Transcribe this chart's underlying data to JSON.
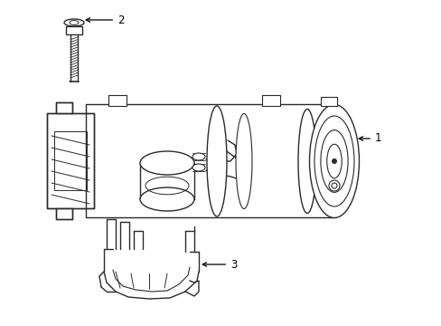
{
  "background_color": "#ffffff",
  "line_color": "#2a2a2a",
  "line_width": 1.0,
  "label_color": "#000000",
  "label_fontsize": 8.5,
  "labels": {
    "1": {
      "text": "1"
    },
    "2": {
      "text": "2"
    },
    "3": {
      "text": "3"
    }
  },
  "arrow_color": "#000000",
  "figsize": [
    4.89,
    3.6
  ],
  "dpi": 100
}
